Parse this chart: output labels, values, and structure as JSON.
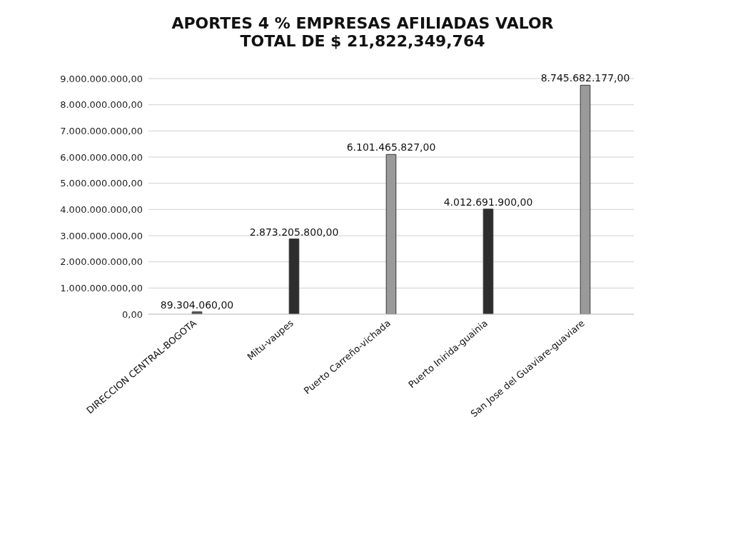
{
  "chart_data": {
    "type": "bar",
    "title": "APORTES 4 % EMPRESAS AFILIADAS VALOR TOTAL DE $ 21,822,349,764",
    "categories": [
      "DIRECCION CENTRAL-BOGOTA",
      "Mitu-vaupes",
      "Puerto Carreño-vichada",
      "Puerto Inirida-guainia",
      "San Jose del Guaviare-guaviare"
    ],
    "values": [
      89304060,
      2873205800,
      6101465827,
      4012691900,
      8745682177
    ],
    "colors": [
      "#5a5a5a",
      "#2e2e2e",
      "#9a9a9a",
      "#2e2e2e",
      "#9a9a9a"
    ],
    "value_labels": [
      "89.304.060,00",
      "2.873.205.800,00",
      "6.101.465.827,00",
      "4.012.691.900,00",
      "8.745.682.177,00"
    ],
    "ylim": [
      0,
      9000000000
    ],
    "yticks": [
      {
        "value": 0,
        "label": "0,00"
      },
      {
        "value": 1000000000,
        "label": "1.000.000.000,00"
      },
      {
        "value": 2000000000,
        "label": "2.000.000.000,00"
      },
      {
        "value": 3000000000,
        "label": "3.000.000.000,00"
      },
      {
        "value": 4000000000,
        "label": "4.000.000.000,00"
      },
      {
        "value": 5000000000,
        "label": "5.000.000.000,00"
      },
      {
        "value": 6000000000,
        "label": "6.000.000.000,00"
      },
      {
        "value": 7000000000,
        "label": "7.000.000.000,00"
      },
      {
        "value": 8000000000,
        "label": "8.000.000.000,00"
      },
      {
        "value": 9000000000,
        "label": "9.000.000.000,00"
      }
    ],
    "grid": "y",
    "legend": false
  }
}
